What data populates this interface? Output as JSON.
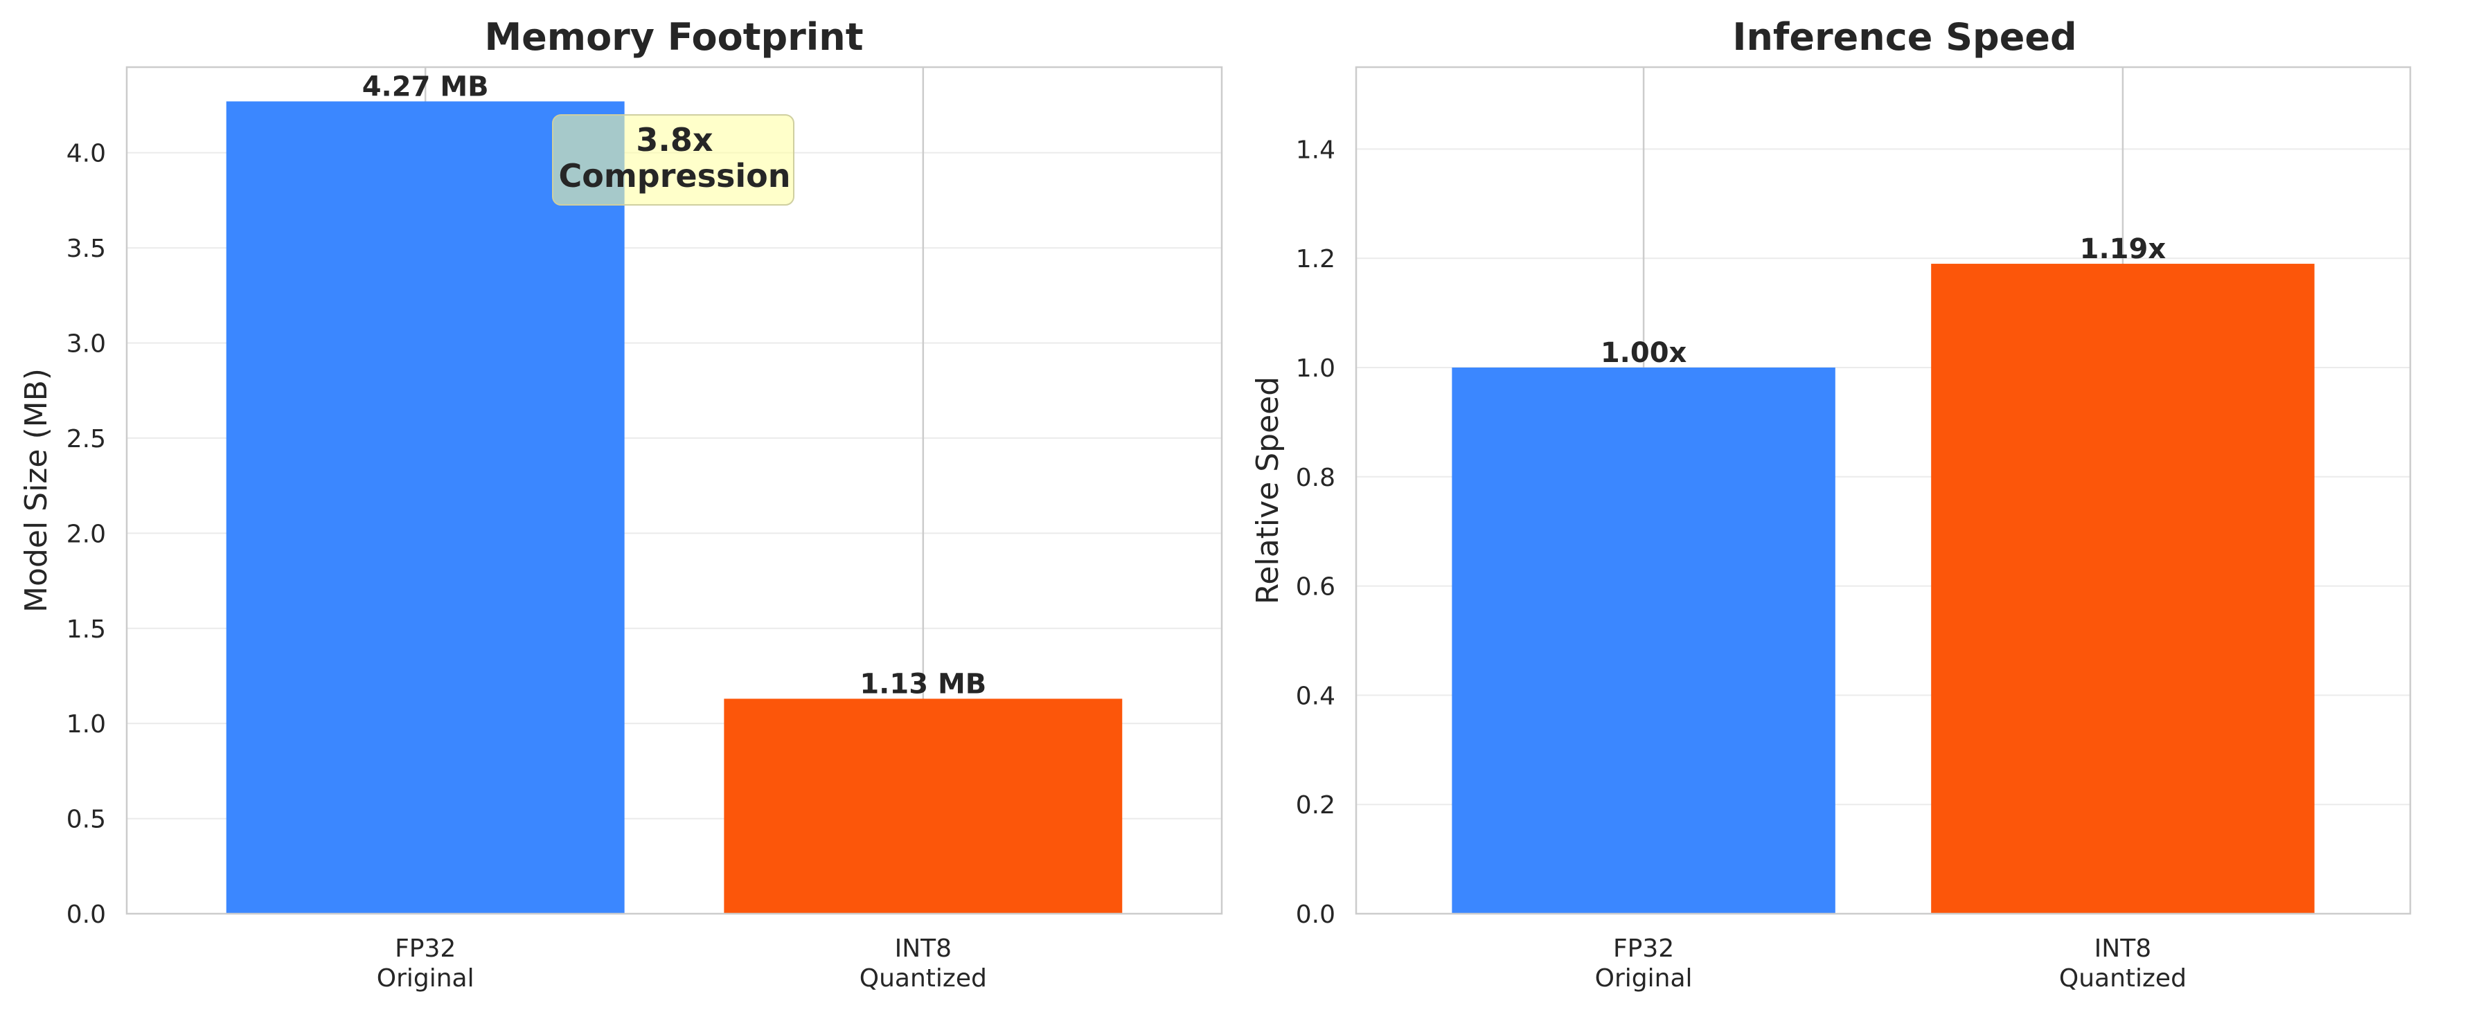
{
  "chart_data": [
    {
      "type": "bar",
      "title": "Memory Footprint",
      "xlabel": "",
      "ylabel": "Model Size (MB)",
      "categories": [
        [
          "FP32",
          "Original"
        ],
        [
          "INT8",
          "Quantized"
        ]
      ],
      "values": [
        4.27,
        1.13
      ],
      "bar_labels": [
        "4.27 MB",
        "1.13 MB"
      ],
      "colors": [
        "#3b87ff",
        "#fc560a"
      ],
      "ylim": [
        0,
        4.45
      ],
      "yticks": [
        0.0,
        0.5,
        1.0,
        1.5,
        2.0,
        2.5,
        3.0,
        3.5,
        4.0
      ],
      "ytick_labels": [
        "0.0",
        "0.5",
        "1.0",
        "1.5",
        "2.0",
        "2.5",
        "3.0",
        "3.5",
        "4.0"
      ],
      "grid": true,
      "annotation": {
        "lines": [
          "3.8x",
          "Compression"
        ],
        "box_color": "#ffff9e"
      }
    },
    {
      "type": "bar",
      "title": "Inference Speed",
      "xlabel": "",
      "ylabel": "Relative Speed",
      "categories": [
        [
          "FP32",
          "Original"
        ],
        [
          "INT8",
          "Quantized"
        ]
      ],
      "values": [
        1.0,
        1.19
      ],
      "bar_labels": [
        "1.00x",
        "1.19x"
      ],
      "colors": [
        "#3b87ff",
        "#fc560a"
      ],
      "ylim": [
        0,
        1.55
      ],
      "yticks": [
        0.0,
        0.2,
        0.4,
        0.6,
        0.8,
        1.0,
        1.2,
        1.4
      ],
      "ytick_labels": [
        "0.0",
        "0.2",
        "0.4",
        "0.6",
        "0.8",
        "1.0",
        "1.2",
        "1.4"
      ],
      "grid": true
    }
  ]
}
